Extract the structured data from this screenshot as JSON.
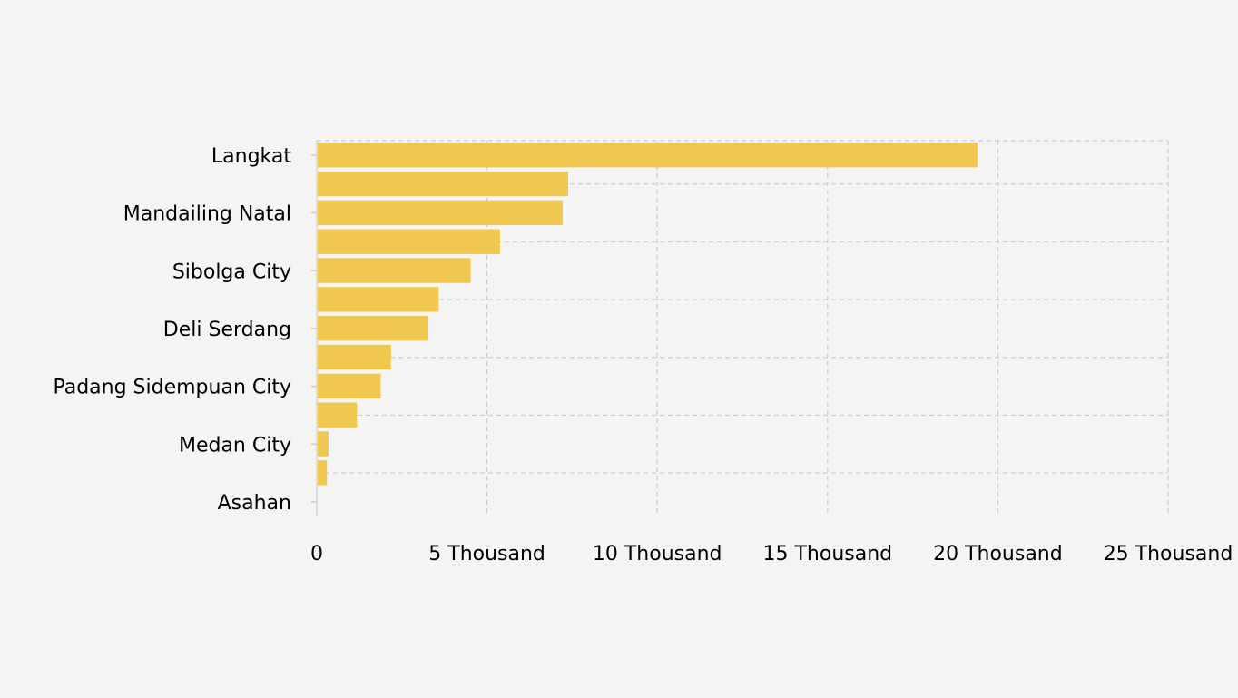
{
  "chart_data": {
    "type": "bar",
    "orientation": "horizontal",
    "title": "",
    "xlabel": "",
    "ylabel": "",
    "xlim": [
      0,
      25000
    ],
    "x_ticks": [
      {
        "value": 0,
        "label": "0"
      },
      {
        "value": 5000,
        "label": "5 Thousand"
      },
      {
        "value": 10000,
        "label": "10 Thousand"
      },
      {
        "value": 15000,
        "label": "15 Thousand"
      },
      {
        "value": 20000,
        "label": "20 Thousand"
      },
      {
        "value": 25000,
        "label": "25 Thousand"
      }
    ],
    "categories": [
      "Langkat",
      "",
      "Mandailing Natal",
      "",
      "Sibolga City",
      "",
      "Deli Serdang",
      "",
      "Padang Sidempuan City",
      "",
      "Medan City",
      "",
      "Asahan"
    ],
    "values": [
      19400,
      7380,
      7220,
      5380,
      4520,
      3580,
      3280,
      2180,
      1880,
      1180,
      350,
      300,
      0
    ],
    "grid": true,
    "legend": "none",
    "bar_color": "#f0c74f",
    "grid_color": "#cccccc"
  }
}
